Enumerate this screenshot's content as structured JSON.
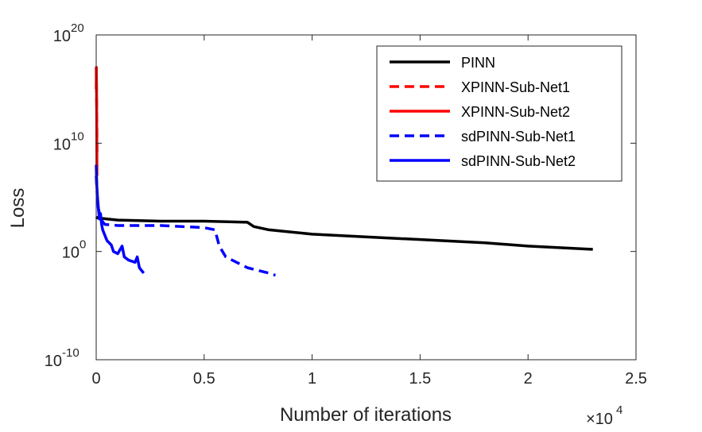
{
  "chart_data": {
    "type": "line",
    "title": "",
    "xlabel": "Number of iterations",
    "ylabel": "Loss",
    "x_multiplier": "×10",
    "x_multiplier_exp": "4",
    "xlim": [
      0,
      2.5
    ],
    "ylim_log10": [
      -10,
      20
    ],
    "yscale": "log",
    "x_ticks": [
      0,
      0.5,
      1,
      1.5,
      2,
      2.5
    ],
    "x_tick_labels": [
      "0",
      "0.5",
      "1",
      "1.5",
      "2",
      "2.5"
    ],
    "y_ticks_log10": [
      -10,
      0,
      10,
      20
    ],
    "y_tick_base": "10",
    "y_tick_exps": [
      "-10",
      "0",
      "10",
      "20"
    ],
    "grid": false,
    "legend_position": "top-right",
    "series": [
      {
        "name": "PINN",
        "color": "#000000",
        "dash": "solid",
        "points": [
          [
            0,
            3.2
          ],
          [
            0.005,
            3.1
          ],
          [
            0.05,
            3.0
          ],
          [
            0.1,
            2.9
          ],
          [
            0.3,
            2.8
          ],
          [
            0.5,
            2.8
          ],
          [
            0.7,
            2.7
          ],
          [
            0.73,
            2.3
          ],
          [
            0.8,
            2.0
          ],
          [
            0.9,
            1.8
          ],
          [
            1.0,
            1.6
          ],
          [
            1.2,
            1.4
          ],
          [
            1.5,
            1.1
          ],
          [
            1.8,
            0.8
          ],
          [
            2.0,
            0.5
          ],
          [
            2.3,
            0.2
          ]
        ]
      },
      {
        "name": "XPINN-Sub-Net1",
        "color": "#ff0000",
        "dash": "dashed",
        "points": [
          [
            0,
            17
          ],
          [
            0.001,
            16
          ],
          [
            0.002,
            14
          ],
          [
            0.003,
            12
          ],
          [
            0.004,
            9
          ]
        ]
      },
      {
        "name": "XPINN-Sub-Net2",
        "color": "#ff0000",
        "dash": "solid",
        "points": [
          [
            0,
            15
          ],
          [
            0.001,
            17
          ],
          [
            0.002,
            14
          ],
          [
            0.003,
            10
          ],
          [
            0.0035,
            7
          ]
        ]
      },
      {
        "name": "sdPINN-Sub-Net1",
        "color": "#0000ff",
        "dash": "dashed",
        "points": [
          [
            0,
            7.0
          ],
          [
            0.005,
            5.0
          ],
          [
            0.01,
            4.0
          ],
          [
            0.02,
            3.0
          ],
          [
            0.04,
            2.5
          ],
          [
            0.1,
            2.4
          ],
          [
            0.3,
            2.4
          ],
          [
            0.5,
            2.2
          ],
          [
            0.55,
            2.0
          ],
          [
            0.57,
            0.5
          ],
          [
            0.6,
            -0.5
          ],
          [
            0.65,
            -1.0
          ],
          [
            0.7,
            -1.5
          ],
          [
            0.8,
            -2.0
          ],
          [
            0.83,
            -2.2
          ]
        ]
      },
      {
        "name": "sdPINN-Sub-Net2",
        "color": "#0000ff",
        "dash": "solid",
        "points": [
          [
            0,
            8.0
          ],
          [
            0.003,
            6.0
          ],
          [
            0.006,
            5.0
          ],
          [
            0.01,
            4.0
          ],
          [
            0.015,
            3.0
          ],
          [
            0.02,
            3.5
          ],
          [
            0.025,
            2.5
          ],
          [
            0.03,
            2.0
          ],
          [
            0.04,
            1.5
          ],
          [
            0.05,
            1.0
          ],
          [
            0.06,
            0.8
          ],
          [
            0.07,
            0.6
          ],
          [
            0.08,
            0.0
          ],
          [
            0.1,
            -0.2
          ],
          [
            0.12,
            0.5
          ],
          [
            0.13,
            -0.5
          ],
          [
            0.15,
            -0.8
          ],
          [
            0.18,
            -1.0
          ],
          [
            0.19,
            -0.5
          ],
          [
            0.2,
            -1.5
          ],
          [
            0.22,
            -2.0
          ]
        ]
      }
    ]
  }
}
